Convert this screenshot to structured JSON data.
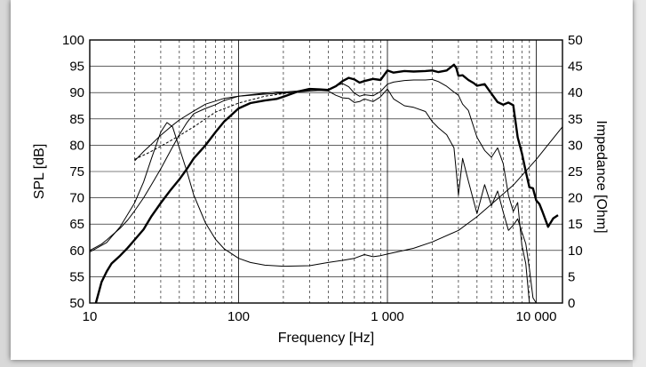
{
  "chart_data": {
    "type": "line",
    "xlabel": "Frequency [Hz]",
    "ylabel": "SPL [dB]",
    "y2label": "Impedance [Ohm]",
    "xscale": "log",
    "xlim": [
      10,
      15000
    ],
    "ylim": [
      50,
      100
    ],
    "y2lim": [
      0,
      50
    ],
    "grid": true,
    "x_tick_values": [
      10,
      100,
      1000,
      10000
    ],
    "x_tick_labels": [
      "10",
      "100",
      "1 000",
      "10 000"
    ],
    "y_ticks": [
      "50",
      "55",
      "60",
      "65",
      "70",
      "75",
      "80",
      "85",
      "90",
      "95",
      "100"
    ],
    "y2_ticks": [
      "0",
      "5",
      "10",
      "15",
      "20",
      "25",
      "30",
      "35",
      "40",
      "45",
      "50"
    ],
    "series": [
      {
        "style": "thick",
        "axis": "left",
        "x": [
          11,
          12,
          13,
          14,
          16,
          18,
          20,
          23,
          26,
          30,
          35,
          40,
          45,
          50,
          60,
          70,
          80,
          100,
          120,
          150,
          180,
          200,
          250,
          300,
          350,
          400,
          450,
          500,
          550,
          600,
          650,
          700,
          800,
          900,
          1000,
          1100,
          1300,
          1500,
          1800,
          2000,
          2200,
          2500,
          2800,
          2900,
          3000,
          3200,
          3500,
          3800,
          4000,
          4500,
          5000,
          5500,
          6000,
          6500,
          7000,
          7500,
          8000,
          8500,
          9000,
          9500,
          10000,
          10500,
          11000,
          12000,
          13000,
          14000
        ],
        "y": [
          50,
          54,
          56,
          57.5,
          59,
          60.5,
          62,
          64,
          66.5,
          69,
          71.5,
          73.5,
          75.5,
          77.5,
          80,
          82.5,
          84.5,
          87,
          88,
          88.5,
          88.8,
          89.2,
          90.2,
          90.7,
          90.6,
          90.5,
          91.2,
          92.2,
          92.8,
          92.5,
          91.9,
          92.2,
          92.6,
          92.4,
          94.2,
          93.8,
          94.1,
          94,
          94.1,
          94.2,
          93.9,
          94.2,
          95.3,
          94.7,
          93.2,
          93.3,
          92.4,
          91.8,
          91.3,
          91.6,
          89.8,
          88.2,
          87.7,
          88.1,
          87.6,
          81.5,
          78.5,
          75,
          72,
          71.8,
          69.5,
          68.8,
          67.4,
          64.5,
          66.1,
          66.7
        ]
      },
      {
        "style": "thin",
        "axis": "left",
        "x": [
          10,
          11,
          12,
          13,
          14,
          16,
          18,
          20,
          23,
          26,
          30,
          35,
          40,
          45,
          50,
          60,
          70,
          80,
          100,
          120,
          150,
          180,
          200,
          250,
          300,
          350,
          400,
          450,
          500,
          550,
          600,
          650,
          700,
          800,
          900,
          1000,
          1100,
          1300,
          1500,
          1800,
          2000,
          2200,
          2500,
          2800,
          3000,
          3200,
          3500,
          4000,
          4500,
          5000,
          5500,
          6000,
          6500,
          7000,
          7500,
          8000,
          8500,
          9000
        ],
        "y": [
          60,
          60.6,
          61.2,
          62,
          62.8,
          64.2,
          65.8,
          67.5,
          70,
          72.5,
          75.5,
          79,
          82,
          84.3,
          86,
          87,
          87.7,
          88.5,
          89.3,
          89.6,
          89.9,
          90.1,
          90.1,
          90.3,
          90.5,
          90.6,
          90.6,
          91.3,
          91.7,
          91.1,
          89.9,
          89.3,
          89.6,
          89.4,
          90.2,
          91.6,
          92,
          92.3,
          92.4,
          92.4,
          92.5,
          92.1,
          91.2,
          90.1,
          89.5,
          87.8,
          86.6,
          81.5,
          79,
          77.7,
          79.5,
          76.5,
          70.5,
          67.4,
          69.1,
          61,
          57.5,
          50
        ]
      },
      {
        "style": "thin",
        "axis": "left",
        "x": [
          20,
          23,
          26,
          30,
          35,
          40,
          50,
          60,
          80,
          100,
          150,
          200,
          250,
          300,
          350,
          400,
          450,
          500,
          550,
          600,
          650,
          700,
          800,
          900,
          1000,
          1100,
          1300,
          1500,
          1800,
          2000,
          2200,
          2500,
          2800,
          2900,
          3000,
          3200,
          3500,
          4000,
          4500,
          5000,
          5500,
          6000,
          6500,
          7000,
          7500,
          8000,
          8500,
          9000,
          9500,
          10000
        ],
        "y": [
          77,
          78.8,
          80.2,
          81.9,
          83.5,
          84.8,
          86.5,
          87.8,
          88.9,
          89.3,
          89.7,
          89.9,
          90.1,
          90.3,
          90.4,
          90.3,
          89.5,
          89,
          88.9,
          88.1,
          88.3,
          88.8,
          88.3,
          89.2,
          90.7,
          88.8,
          87.5,
          87.2,
          86.4,
          84.5,
          83.3,
          82,
          79.5,
          75,
          70.5,
          77.5,
          73.2,
          67,
          72.5,
          68.5,
          71.3,
          67.3,
          63.8,
          64.8,
          66,
          63.5,
          61.3,
          56.5,
          51,
          50
        ]
      },
      {
        "style": "dashed",
        "axis": "left",
        "x": [
          20,
          25,
          30,
          40,
          50,
          70,
          100,
          150,
          200,
          250,
          300
        ],
        "y": [
          77.3,
          78.6,
          79.8,
          81.8,
          83.5,
          86.3,
          88,
          89.3,
          89.8,
          90.2,
          90.4
        ]
      },
      {
        "style": "thin",
        "axis": "right",
        "x": [
          10,
          13,
          16,
          20,
          23,
          26,
          30,
          33,
          36,
          40,
          45,
          50,
          60,
          70,
          80,
          100,
          120,
          150,
          200,
          300,
          400,
          500,
          600,
          700,
          800,
          900,
          1000,
          1500,
          2000,
          3000,
          4000,
          5000,
          7000,
          10000,
          15000
        ],
        "y": [
          9.7,
          11.5,
          14.5,
          19,
          23,
          27.5,
          32.5,
          34.3,
          33.5,
          29.5,
          25,
          20.5,
          15.2,
          12.1,
          10.3,
          8.5,
          7.7,
          7.2,
          7,
          7.1,
          7.7,
          8.1,
          8.5,
          9.2,
          8.8,
          9,
          9.3,
          10.4,
          11.6,
          13.8,
          16.4,
          18.8,
          22.4,
          27.3,
          33.5
        ]
      }
    ]
  }
}
